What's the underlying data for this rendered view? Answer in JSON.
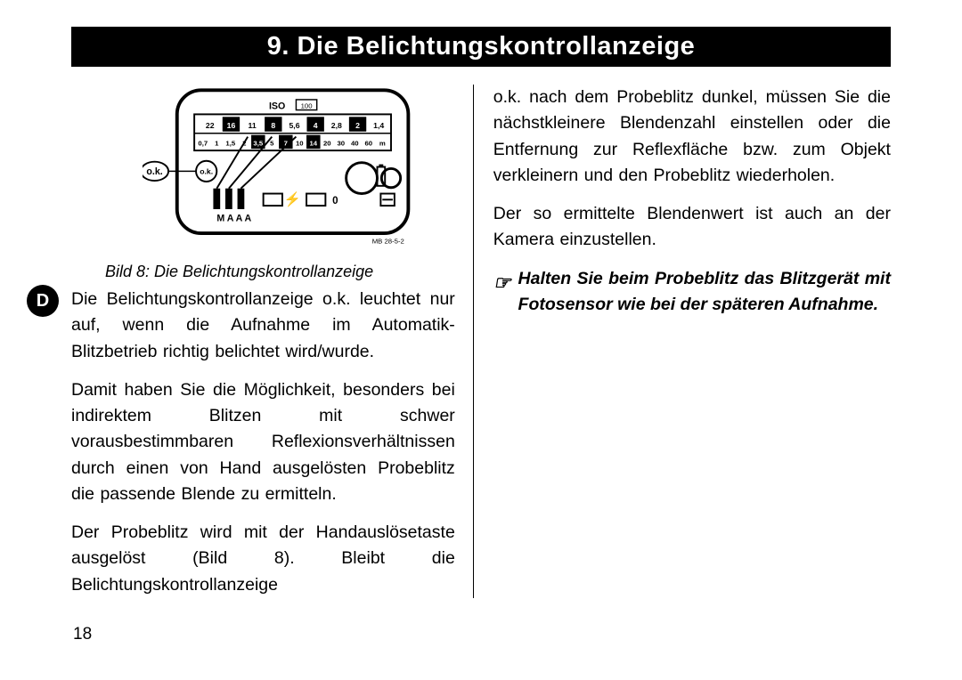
{
  "title": "9. Die Belichtungskontrollanzeige",
  "diagram": {
    "iso_label": "ISO",
    "iso_value": "100",
    "aperture_row": [
      "22",
      "16",
      "11",
      "8",
      "5,6",
      "4",
      "2,8",
      "2",
      "1,4"
    ],
    "aperture_highlight": [
      false,
      true,
      false,
      true,
      false,
      true,
      false,
      true,
      false
    ],
    "distance_row": [
      "0,7",
      "1",
      "1,5",
      "2",
      "3,5",
      "5",
      "7",
      "10",
      "14",
      "20",
      "30",
      "40",
      "60",
      "m"
    ],
    "distance_highlight": [
      false,
      false,
      false,
      false,
      true,
      false,
      true,
      false,
      true,
      false,
      false,
      false,
      false,
      false
    ],
    "ok_outer": "o.k.",
    "ok_inner": "o.k.",
    "mode_row": "M A A A",
    "lightning": "⚡",
    "zero": "0",
    "code": "MB 28-5-2"
  },
  "caption": "Bild 8: Die Belichtungskontrollanzeige",
  "left_paragraphs": [
    "Die Belichtungskontrollanzeige o.k. leuchtet nur auf, wenn die Aufnahme im Automatik-Blitzbetrieb richtig belichtet wird/wurde.",
    "Damit haben Sie die Möglichkeit, besonders bei indirektem Blitzen mit schwer vorausbestimmbaren Reflexionsverhältnissen durch einen von Hand ausgelösten Probeblitz die passende Blende zu ermitteln.",
    "Der Probeblitz wird mit der Handauslösetaste aus­gelöst (Bild 8). Bleibt die Belichtungskontrollanzeige"
  ],
  "right_paragraphs": [
    "o.k. nach dem Probeblitz dunkel, müssen Sie die nächstkleinere Blendenzahl einstellen oder die Ent­fernung zur Reflexfläche bzw. zum Objekt verkleinern und den Probeblitz wiederholen.",
    "Der so ermittelte Blendenwert ist auch an der Kame­ra einzustellen."
  ],
  "note": "Halten Sie beim Probeblitz das Blitzgerät mit Fotosensor wie bei der späteren Aufnahme.",
  "note_icon": "☞",
  "side_tab": "D",
  "page_number": "18"
}
